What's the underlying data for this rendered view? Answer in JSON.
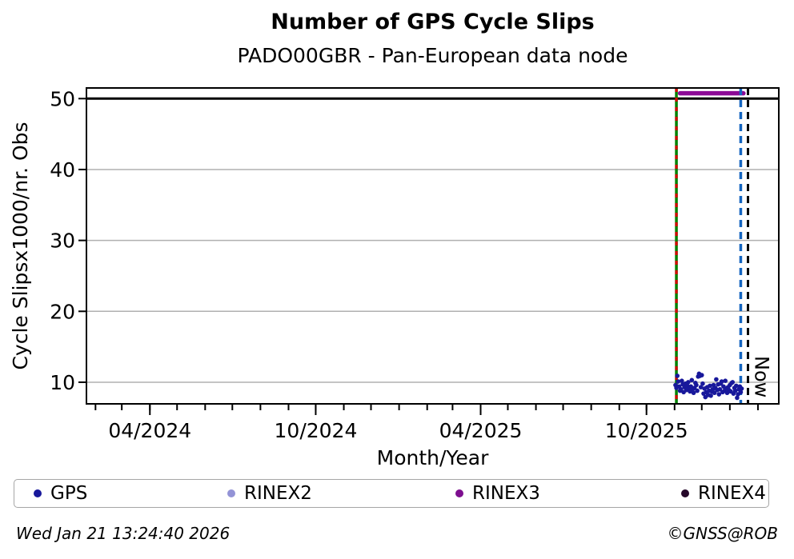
{
  "header": {
    "title": "Number of GPS Cycle Slips",
    "subtitle": "PADO00GBR - Pan-European data node"
  },
  "footer": {
    "timestamp": "Wed Jan 21 13:24:40 2026",
    "copyright": "©GNSS@ROB"
  },
  "legend": {
    "items": [
      {
        "label": "GPS",
        "color": "#18189b"
      },
      {
        "label": "RINEX2",
        "color": "#9393d6"
      },
      {
        "label": "RINEX3",
        "color": "#7d0e8f"
      },
      {
        "label": "RINEX4",
        "color": "#26082a"
      }
    ]
  },
  "chart_data": {
    "type": "scatter",
    "title": "Number of GPS Cycle Slips",
    "subtitle": "PADO00GBR - Pan-European data node",
    "xlabel": "Month/Year",
    "ylabel": "Cycle Slipsx1000/nr. Obs",
    "x_domain": [
      "2024-01-22",
      "2026-02-24"
    ],
    "y_domain": [
      6.95,
      51.5
    ],
    "y_ticks": [
      10,
      20,
      30,
      40,
      50
    ],
    "x_major_ticks": [
      {
        "label": "04/2024",
        "date": "2024-04-01"
      },
      {
        "label": "10/2024",
        "date": "2024-10-01"
      },
      {
        "label": "04/2025",
        "date": "2025-04-01"
      },
      {
        "label": "10/2025",
        "date": "2025-10-01"
      }
    ],
    "grid_on": true,
    "grid_color": "#b0b0b0",
    "legend_position": "bottom",
    "threshold_line": {
      "value": 50,
      "color": "#000000"
    },
    "vlines": [
      {
        "name": "data-start-line",
        "date": "2025-11-03",
        "style": "solid",
        "color": "#008000",
        "width": 3.5,
        "dash": ""
      },
      {
        "name": "data-start-overlay-line",
        "date": "2025-11-03",
        "style": "dashed",
        "color": "#d40000",
        "width": 3.2,
        "dash": "5,7"
      },
      {
        "name": "latest-data-line",
        "date": "2026-01-13",
        "style": "dashed",
        "color": "#1565c0",
        "width": 3.5,
        "dash": "9,6"
      },
      {
        "name": "now-line",
        "date": "2026-01-21",
        "style": "dashed",
        "color": "#000000",
        "width": 3.0,
        "dash": "9,6",
        "label": "Now"
      }
    ],
    "series": [
      {
        "name": "GPS",
        "type": "scatter",
        "color": "#18189b",
        "points": [
          [
            "2025-11-02",
            9.6
          ],
          [
            "2025-11-03",
            9.2
          ],
          [
            "2025-11-04",
            10.9
          ],
          [
            "2025-11-05",
            10.1
          ],
          [
            "2025-11-06",
            9.4
          ],
          [
            "2025-11-07",
            8.8
          ],
          [
            "2025-11-08",
            9.0
          ],
          [
            "2025-11-09",
            10.2
          ],
          [
            "2025-11-10",
            9.7
          ],
          [
            "2025-11-11",
            8.6
          ],
          [
            "2025-11-12",
            9.3
          ],
          [
            "2025-11-13",
            9.8
          ],
          [
            "2025-11-14",
            8.9
          ],
          [
            "2025-11-15",
            9.5
          ],
          [
            "2025-11-16",
            10.0
          ],
          [
            "2025-11-17",
            9.1
          ],
          [
            "2025-11-18",
            8.7
          ],
          [
            "2025-11-19",
            9.4
          ],
          [
            "2025-11-20",
            10.3
          ],
          [
            "2025-11-21",
            9.0
          ],
          [
            "2025-11-22",
            8.5
          ],
          [
            "2025-11-23",
            9.2
          ],
          [
            "2025-11-24",
            9.9
          ],
          [
            "2025-11-25",
            9.6
          ],
          [
            "2025-11-26",
            8.8
          ],
          [
            "2025-11-27",
            10.8
          ],
          [
            "2025-11-28",
            11.2
          ],
          [
            "2025-11-29",
            10.9
          ],
          [
            "2025-11-30",
            9.3
          ],
          [
            "2025-12-01",
            11.0
          ],
          [
            "2025-12-02",
            9.8
          ],
          [
            "2025-12-03",
            8.4
          ],
          [
            "2025-12-04",
            9.1
          ],
          [
            "2025-12-05",
            7.9
          ],
          [
            "2025-12-06",
            8.6
          ],
          [
            "2025-12-07",
            9.3
          ],
          [
            "2025-12-08",
            8.2
          ],
          [
            "2025-12-09",
            8.8
          ],
          [
            "2025-12-10",
            9.5
          ],
          [
            "2025-12-11",
            8.1
          ],
          [
            "2025-12-12",
            8.7
          ],
          [
            "2025-12-13",
            9.0
          ],
          [
            "2025-12-14",
            9.6
          ],
          [
            "2025-12-15",
            8.5
          ],
          [
            "2025-12-16",
            9.2
          ],
          [
            "2025-12-17",
            10.4
          ],
          [
            "2025-12-18",
            8.9
          ],
          [
            "2025-12-19",
            9.7
          ],
          [
            "2025-12-20",
            8.3
          ],
          [
            "2025-12-21",
            9.0
          ],
          [
            "2025-12-22",
            9.8
          ],
          [
            "2025-12-23",
            10.1
          ],
          [
            "2025-12-24",
            8.6
          ],
          [
            "2025-12-25",
            9.4
          ],
          [
            "2025-12-26",
            8.8
          ],
          [
            "2025-12-27",
            10.2
          ],
          [
            "2025-12-28",
            9.1
          ],
          [
            "2025-12-29",
            8.5
          ],
          [
            "2025-12-30",
            9.3
          ],
          [
            "2025-12-31",
            8.9
          ],
          [
            "2026-01-01",
            9.6
          ],
          [
            "2026-01-02",
            8.7
          ],
          [
            "2026-01-03",
            9.9
          ],
          [
            "2026-01-04",
            10.0
          ],
          [
            "2026-01-05",
            8.4
          ],
          [
            "2026-01-06",
            9.2
          ],
          [
            "2026-01-07",
            8.8
          ],
          [
            "2026-01-08",
            9.5
          ],
          [
            "2026-01-09",
            7.8
          ],
          [
            "2026-01-10",
            8.3
          ],
          [
            "2026-01-11",
            9.0
          ],
          [
            "2026-01-12",
            9.4
          ],
          [
            "2026-01-13",
            8.6
          ],
          [
            "2026-01-14",
            9.1
          ]
        ]
      },
      {
        "name": "RINEX2",
        "type": "scatter",
        "color": "#9393d6",
        "points": []
      },
      {
        "name": "RINEX3",
        "type": "segment",
        "color": "#8c0a96",
        "value": 50.75,
        "start": "2025-11-07",
        "end": "2026-01-16"
      },
      {
        "name": "RINEX4",
        "type": "scatter",
        "color": "#26082a",
        "points": []
      }
    ]
  }
}
